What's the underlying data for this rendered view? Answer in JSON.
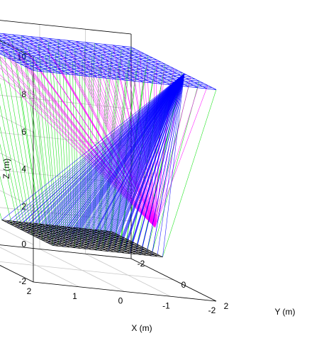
{
  "chart_data": {
    "type": "rays3d",
    "xlabel": "X (m)",
    "ylabel": "Y (m)",
    "zlabel": "Z (m)",
    "xlim": [
      -2,
      2
    ],
    "ylim": [
      -2,
      2
    ],
    "zlim": [
      -2,
      10
    ],
    "xticks": [
      2,
      1,
      0,
      -1,
      -2
    ],
    "yticks": [
      -2,
      0,
      2
    ],
    "zticks": [
      -2,
      0,
      2,
      4,
      6,
      8,
      10
    ],
    "grid": true,
    "top_plane": {
      "z": 9.3,
      "half": 2,
      "color": "#0000ff"
    },
    "bottom_plane": {
      "z": -0.3,
      "half": 1.2,
      "color": "#000000"
    },
    "focus": {
      "x": -1.5,
      "y": 0.2,
      "z": 0.8
    },
    "source": {
      "x": -2,
      "y": 0.5,
      "z": 9.3
    },
    "colors": {
      "direct": "#00e000",
      "focused": "#ff00ff",
      "fan": "#0000ff"
    }
  }
}
